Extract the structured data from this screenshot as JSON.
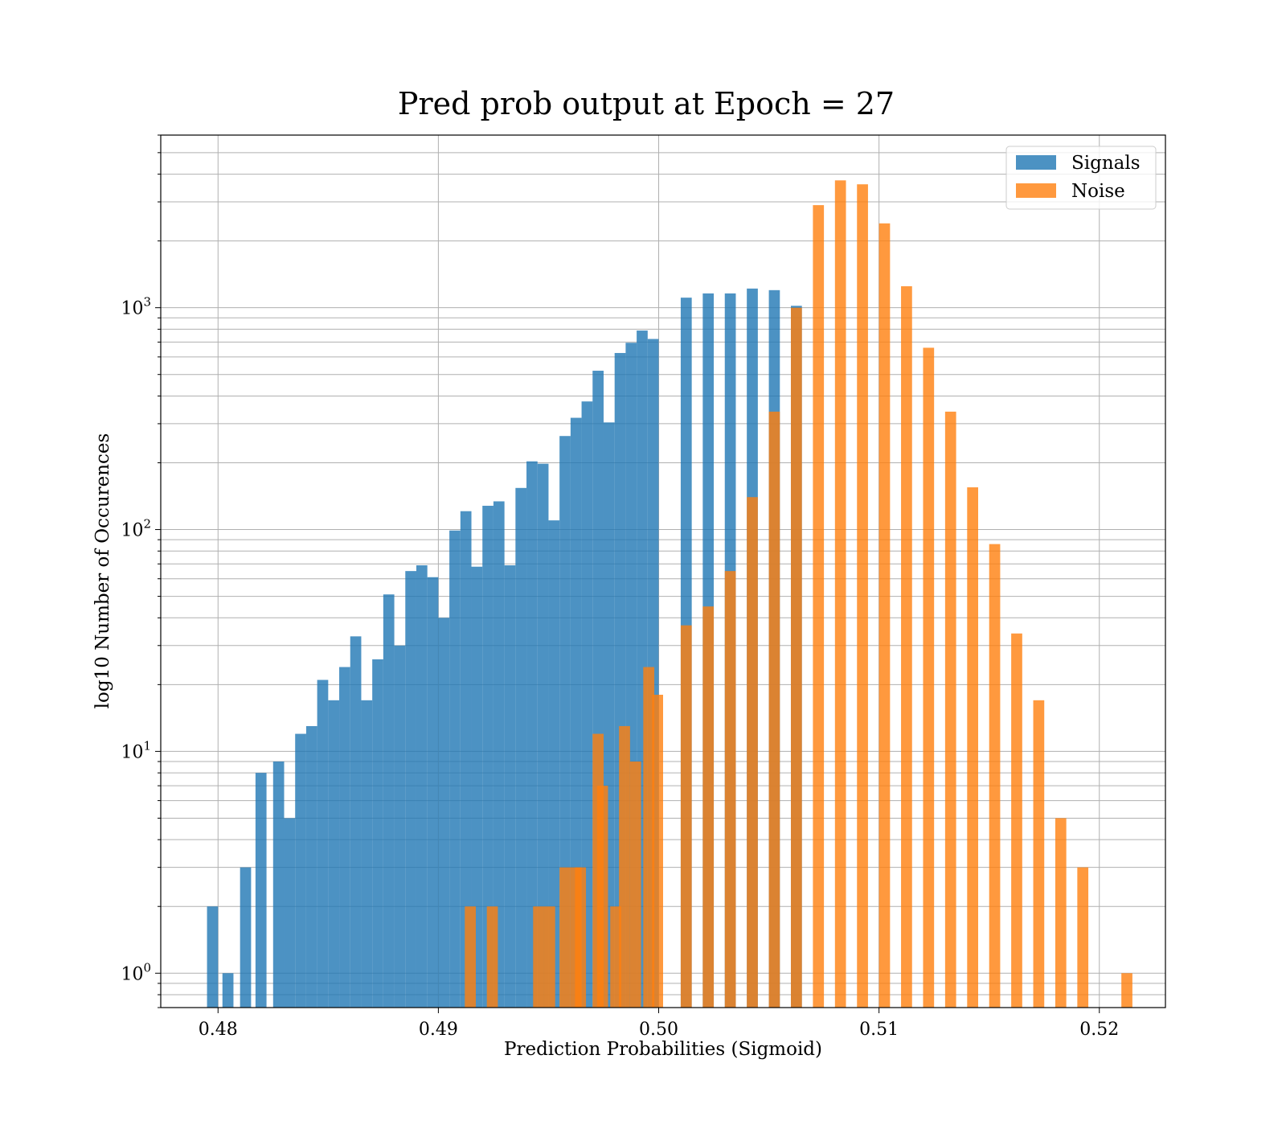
{
  "chart_data": {
    "type": "bar",
    "title": "Pred prob output at Epoch = 27",
    "xlabel": "Prediction Probabilities (Sigmoid)",
    "ylabel": "log10 Number of Occurences",
    "yscale": "log",
    "xlim": [
      0.4774,
      0.523
    ],
    "ylim": [
      0.7,
      6000
    ],
    "xticks": [
      {
        "value": 0.48,
        "label": "0.48"
      },
      {
        "value": 0.49,
        "label": "0.49"
      },
      {
        "value": 0.5,
        "label": "0.50"
      },
      {
        "value": 0.51,
        "label": "0.51"
      },
      {
        "value": 0.52,
        "label": "0.52"
      }
    ],
    "yticks": [
      {
        "value": 1,
        "base": "10",
        "exp": "0"
      },
      {
        "value": 10,
        "base": "10",
        "exp": "1"
      },
      {
        "value": 100,
        "base": "10",
        "exp": "2"
      },
      {
        "value": 1000,
        "base": "10",
        "exp": "3"
      }
    ],
    "grid": true,
    "legend_position": "top-right",
    "series": [
      {
        "name": "Signals",
        "color": "#1f77b4",
        "opacity": 0.8,
        "bins": [
          [
            0.4795,
            0.48,
            2
          ],
          [
            0.4802,
            0.4807,
            1
          ],
          [
            0.481,
            0.4815,
            3
          ],
          [
            0.4817,
            0.4822,
            8
          ],
          [
            0.4825,
            0.483,
            9
          ],
          [
            0.483,
            0.4835,
            5
          ],
          [
            0.4835,
            0.484,
            12
          ],
          [
            0.484,
            0.4845,
            13
          ],
          [
            0.4845,
            0.485,
            21
          ],
          [
            0.485,
            0.4855,
            17
          ],
          [
            0.4855,
            0.486,
            24
          ],
          [
            0.486,
            0.4865,
            33
          ],
          [
            0.4865,
            0.487,
            17
          ],
          [
            0.487,
            0.4875,
            26
          ],
          [
            0.4875,
            0.488,
            51
          ],
          [
            0.488,
            0.4885,
            30
          ],
          [
            0.4885,
            0.489,
            65
          ],
          [
            0.489,
            0.4895,
            69
          ],
          [
            0.4895,
            0.49,
            61
          ],
          [
            0.49,
            0.4905,
            40
          ],
          [
            0.4905,
            0.491,
            99
          ],
          [
            0.491,
            0.4915,
            121
          ],
          [
            0.4915,
            0.492,
            68
          ],
          [
            0.492,
            0.4925,
            128
          ],
          [
            0.4925,
            0.493,
            134
          ],
          [
            0.493,
            0.4935,
            69
          ],
          [
            0.4935,
            0.494,
            154
          ],
          [
            0.494,
            0.4945,
            203
          ],
          [
            0.4945,
            0.495,
            198
          ],
          [
            0.495,
            0.4955,
            110
          ],
          [
            0.4955,
            0.496,
            264
          ],
          [
            0.496,
            0.4965,
            319
          ],
          [
            0.4965,
            0.497,
            378
          ],
          [
            0.497,
            0.4975,
            520
          ],
          [
            0.4975,
            0.498,
            304
          ],
          [
            0.498,
            0.4985,
            625
          ],
          [
            0.4985,
            0.499,
            695
          ],
          [
            0.499,
            0.4995,
            789
          ],
          [
            0.4995,
            0.5,
            723
          ],
          [
            0.501,
            0.5015,
            1110
          ],
          [
            0.502,
            0.5025,
            1160
          ],
          [
            0.503,
            0.5035,
            1160
          ],
          [
            0.504,
            0.5045,
            1220
          ],
          [
            0.505,
            0.5055,
            1200
          ],
          [
            0.506,
            0.5065,
            1020
          ]
        ]
      },
      {
        "name": "Noise",
        "color": "#ff7f0e",
        "opacity": 0.8,
        "bins": [
          [
            0.4912,
            0.4917,
            2
          ],
          [
            0.4922,
            0.4927,
            2
          ],
          [
            0.4943,
            0.4948,
            2
          ],
          [
            0.4948,
            0.4953,
            2
          ],
          [
            0.4955,
            0.496,
            3
          ],
          [
            0.496,
            0.4965,
            3
          ],
          [
            0.4962,
            0.4967,
            3
          ],
          [
            0.497,
            0.4975,
            12
          ],
          [
            0.4972,
            0.4977,
            7
          ],
          [
            0.4978,
            0.4983,
            2
          ],
          [
            0.4982,
            0.4987,
            13
          ],
          [
            0.4987,
            0.4992,
            9
          ],
          [
            0.4993,
            0.4998,
            24
          ],
          [
            0.4997,
            0.5002,
            18
          ],
          [
            0.501,
            0.5015,
            37
          ],
          [
            0.502,
            0.5025,
            45
          ],
          [
            0.503,
            0.5035,
            65
          ],
          [
            0.504,
            0.5045,
            140
          ],
          [
            0.505,
            0.5055,
            340
          ],
          [
            0.506,
            0.5065,
            1000
          ],
          [
            0.507,
            0.5075,
            2900
          ],
          [
            0.508,
            0.5085,
            3750
          ],
          [
            0.509,
            0.5095,
            3600
          ],
          [
            0.51,
            0.5105,
            2400
          ],
          [
            0.511,
            0.5115,
            1250
          ],
          [
            0.512,
            0.5125,
            660
          ],
          [
            0.513,
            0.5135,
            340
          ],
          [
            0.514,
            0.5145,
            155
          ],
          [
            0.515,
            0.5155,
            86
          ],
          [
            0.516,
            0.5165,
            34
          ],
          [
            0.517,
            0.5175,
            17
          ],
          [
            0.518,
            0.5185,
            5
          ],
          [
            0.519,
            0.5195,
            3
          ],
          [
            0.521,
            0.5215,
            1
          ]
        ]
      }
    ]
  }
}
